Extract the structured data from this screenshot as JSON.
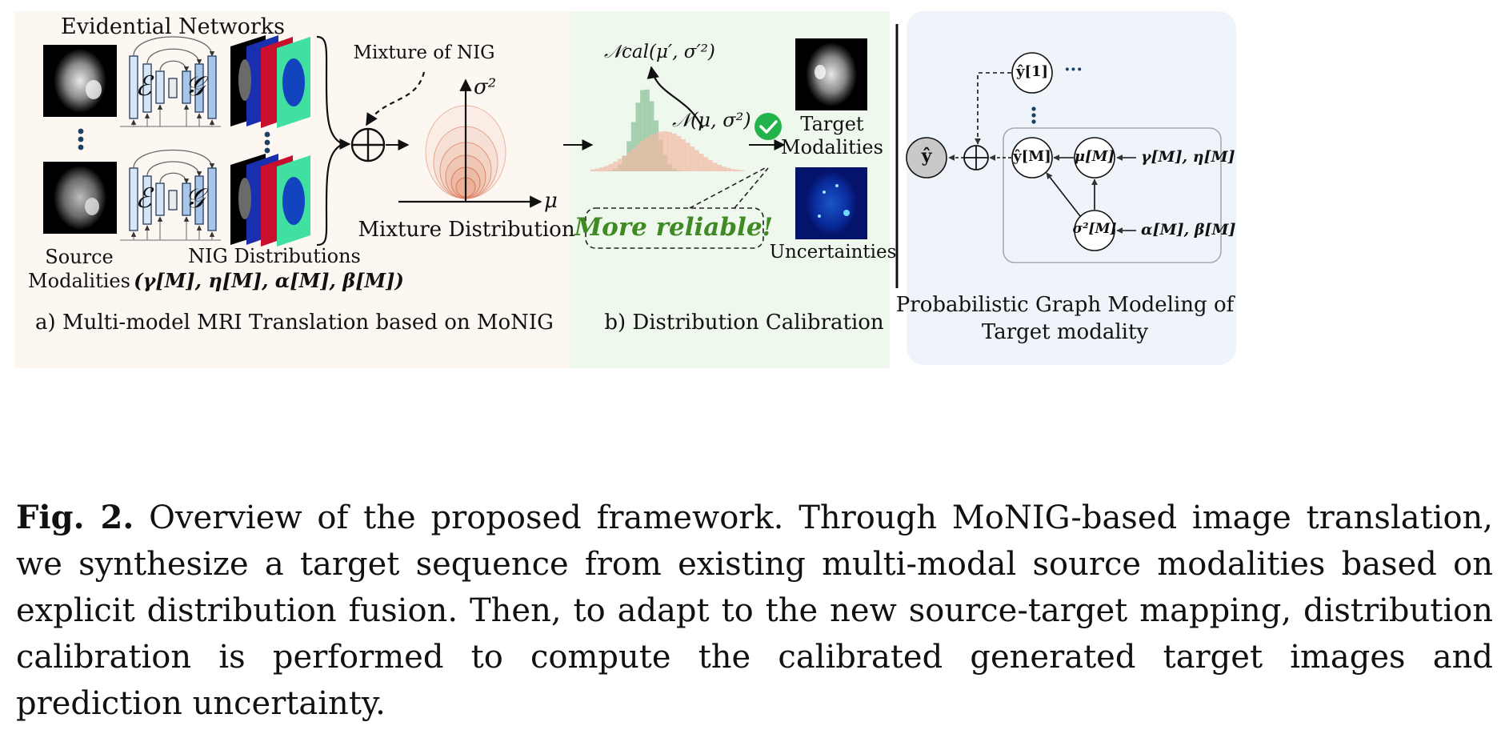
{
  "panel_a": {
    "title": "Evidential Networks",
    "encoder_symbol": "ℰ",
    "decoder_symbol": "𝒢",
    "source_label_line1": "Source",
    "source_label_line2": "Modalities",
    "nig_label": "NIG Distributions",
    "nig_params": "(γ[M], η[M], α[M], β[M])",
    "mixture_of_nig": "Mixture of NIG",
    "sigma_axis": "σ²",
    "mu_axis": "μ",
    "mixture_distribution": "Mixture Distribution",
    "caption": "a) Multi-model MRI Translation based on MoNIG",
    "colors": {
      "background": "#fdf7f2",
      "encoder": "#d7e6f7",
      "decoder": "#a9c6e8",
      "contour": "#e39a7c"
    }
  },
  "panel_b": {
    "ncal_label": "𝒩cal(μ′, σ′²)",
    "n_label": "𝒩(μ, σ²)",
    "target_line1": "Target",
    "target_line2": "Modalities",
    "reliable": "More reliable!",
    "uncertainties": "Uncertainties",
    "caption": "b) Distribution Calibration",
    "colors": {
      "background": "#eef8ec",
      "green_hist": "#8fc39c",
      "red_hist": "#f2b9a5",
      "check": "#22b44a"
    }
  },
  "panel_c": {
    "y_hat": "ŷ",
    "y_hat_1": "ŷ[1]",
    "ellipsis_h": "···",
    "y_hat_m": "ŷ[M]",
    "mu_m": "μ[M]",
    "sigma_m": "σ²[M]",
    "gamma_eta": "γ[M], η[M]",
    "alpha_beta": "α[M], β[M]",
    "caption_line1": "Probabilistic Graph Modeling of",
    "caption_line2": "Target modality",
    "colors": {
      "background": "#eef4fa",
      "y_node": "#c9c9c9"
    }
  },
  "caption": {
    "fig_no": "Fig. 2.",
    "text": "Overview of the proposed framework. Through MoNIG-based image translation, we synthesize a target sequence from existing multi-modal source modalities based on explicit distribution fusion. Then, to adapt to the new source-target mapping, distribution calibration is performed to compute the calibrated generated target images and prediction uncertainty."
  }
}
